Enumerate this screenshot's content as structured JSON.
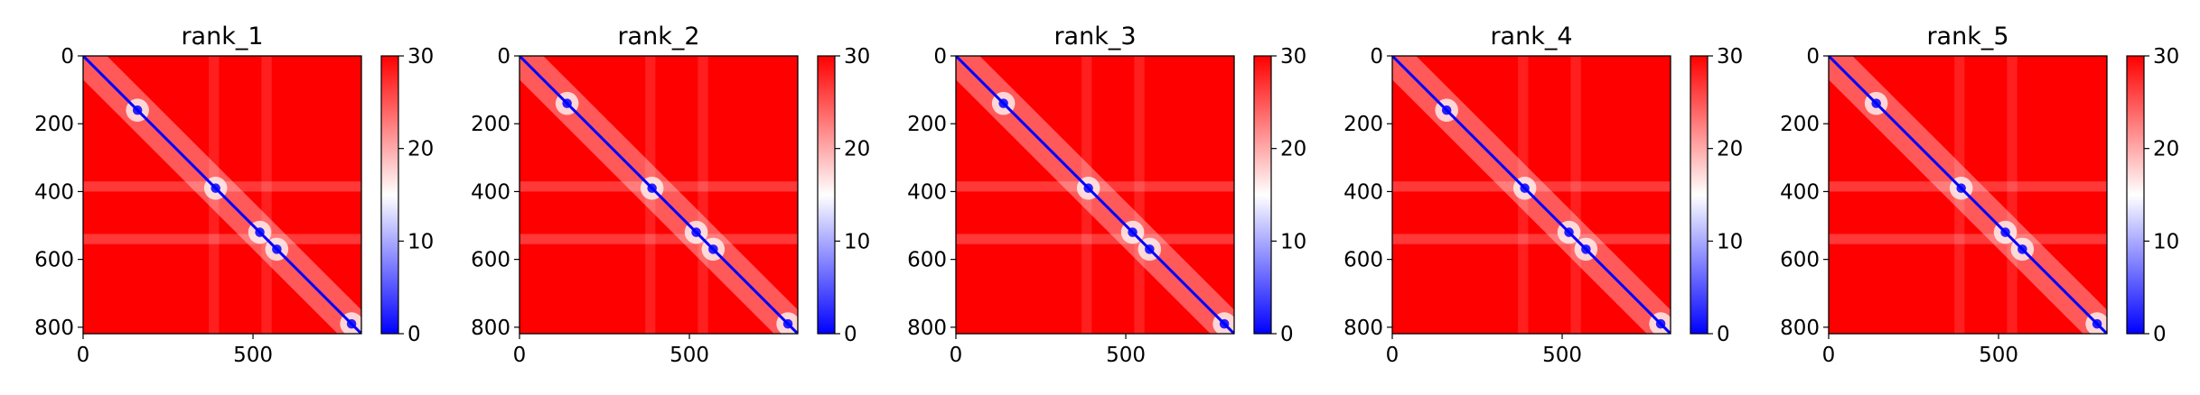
{
  "figure": {
    "colormap": [
      "#0000ff",
      "#ffffff",
      "#ff0000"
    ],
    "background": "#ffffff"
  },
  "chart_data": [
    {
      "type": "heatmap",
      "title": "rank_1",
      "x_ticks": [
        "0",
        "500"
      ],
      "y_ticks": [
        "0",
        "200",
        "400",
        "600",
        "800"
      ],
      "xlim": [
        0,
        819
      ],
      "ylim": [
        819,
        0
      ],
      "colorbar": {
        "range": [
          0,
          30
        ],
        "ticks": [
          "0",
          "10",
          "20",
          "30"
        ]
      },
      "features": {
        "diagonal_value": 0,
        "background_value": 30,
        "low_blobs": [
          [
            160,
            160
          ],
          [
            390,
            390
          ],
          [
            520,
            520
          ],
          [
            570,
            570
          ],
          [
            790,
            790
          ]
        ],
        "whitish_bands": [
          385,
          540
        ]
      }
    },
    {
      "type": "heatmap",
      "title": "rank_2",
      "x_ticks": [
        "0",
        "500"
      ],
      "y_ticks": [
        "0",
        "200",
        "400",
        "600",
        "800"
      ],
      "xlim": [
        0,
        819
      ],
      "ylim": [
        819,
        0
      ],
      "colorbar": {
        "range": [
          0,
          30
        ],
        "ticks": [
          "0",
          "10",
          "20",
          "30"
        ]
      },
      "features": {
        "diagonal_value": 0,
        "background_value": 30,
        "low_blobs": [
          [
            140,
            140
          ],
          [
            390,
            390
          ],
          [
            520,
            520
          ],
          [
            570,
            570
          ],
          [
            790,
            790
          ]
        ],
        "whitish_bands": [
          385,
          540
        ]
      }
    },
    {
      "type": "heatmap",
      "title": "rank_3",
      "x_ticks": [
        "0",
        "500"
      ],
      "y_ticks": [
        "0",
        "200",
        "400",
        "600",
        "800"
      ],
      "xlim": [
        0,
        819
      ],
      "ylim": [
        819,
        0
      ],
      "colorbar": {
        "range": [
          0,
          30
        ],
        "ticks": [
          "0",
          "10",
          "20",
          "30"
        ]
      },
      "features": {
        "diagonal_value": 0,
        "background_value": 30,
        "low_blobs": [
          [
            140,
            140
          ],
          [
            390,
            390
          ],
          [
            520,
            520
          ],
          [
            570,
            570
          ],
          [
            790,
            790
          ]
        ],
        "whitish_bands": [
          385,
          540
        ]
      }
    },
    {
      "type": "heatmap",
      "title": "rank_4",
      "x_ticks": [
        "0",
        "500"
      ],
      "y_ticks": [
        "0",
        "200",
        "400",
        "600",
        "800"
      ],
      "xlim": [
        0,
        819
      ],
      "ylim": [
        819,
        0
      ],
      "colorbar": {
        "range": [
          0,
          30
        ],
        "ticks": [
          "0",
          "10",
          "20",
          "30"
        ]
      },
      "features": {
        "diagonal_value": 0,
        "background_value": 30,
        "low_blobs": [
          [
            160,
            160
          ],
          [
            390,
            390
          ],
          [
            520,
            520
          ],
          [
            570,
            570
          ],
          [
            790,
            790
          ]
        ],
        "whitish_bands": [
          385,
          540
        ]
      }
    },
    {
      "type": "heatmap",
      "title": "rank_5",
      "x_ticks": [
        "0",
        "500"
      ],
      "y_ticks": [
        "0",
        "200",
        "400",
        "600",
        "800"
      ],
      "xlim": [
        0,
        819
      ],
      "ylim": [
        819,
        0
      ],
      "colorbar": {
        "range": [
          0,
          30
        ],
        "ticks": [
          "0",
          "10",
          "20",
          "30"
        ]
      },
      "features": {
        "diagonal_value": 0,
        "background_value": 30,
        "low_blobs": [
          [
            140,
            140
          ],
          [
            390,
            390
          ],
          [
            520,
            520
          ],
          [
            570,
            570
          ],
          [
            790,
            790
          ]
        ],
        "whitish_bands": [
          385,
          540
        ]
      }
    }
  ]
}
